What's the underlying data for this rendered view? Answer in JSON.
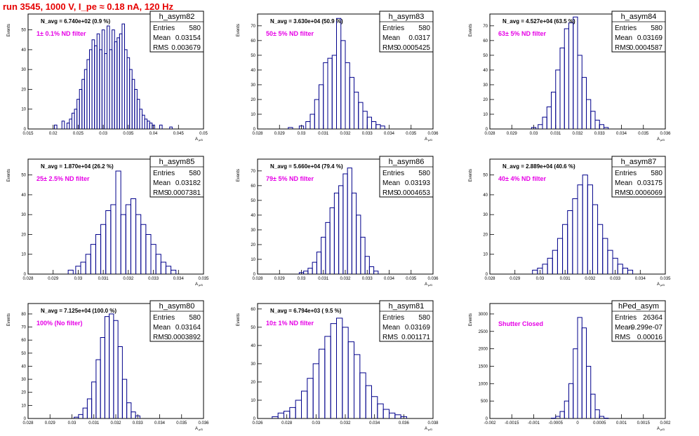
{
  "title": "run 3545,  1000 V, I_pe ≈ 0.18 nA, 120 Hz",
  "colors": {
    "title": "#e60000",
    "hist": "#00008b",
    "filter_label": "#e600e6",
    "frame": "#000000"
  },
  "chart_data": [
    {
      "type": "histogram",
      "name": "h_asym82",
      "stats": {
        "Entries": "580",
        "Mean": "0.03154",
        "RMS": "0.003679"
      },
      "n_avg": "N_avg = 6.740e+02 (0.9 %)",
      "filter": "1± 0.1% ND filter",
      "xlabel": "",
      "ylabel": "Events",
      "xlim": [
        0.015,
        0.05
      ],
      "ylim": [
        0,
        58
      ],
      "xticks": [
        "0.015",
        "0.02",
        "0.025",
        "0.03",
        "0.035",
        "0.04",
        "0.045",
        "0.05"
      ],
      "yticks": [
        "0",
        "10",
        "20",
        "30",
        "40",
        "50"
      ],
      "bins": [
        [
          0.0205,
          2
        ],
        [
          0.022,
          4
        ],
        [
          0.023,
          3
        ],
        [
          0.0235,
          5
        ],
        [
          0.024,
          8
        ],
        [
          0.0245,
          10
        ],
        [
          0.025,
          15
        ],
        [
          0.0255,
          20
        ],
        [
          0.026,
          25
        ],
        [
          0.0265,
          30
        ],
        [
          0.027,
          35
        ],
        [
          0.0275,
          40
        ],
        [
          0.028,
          45
        ],
        [
          0.0285,
          42
        ],
        [
          0.029,
          48
        ],
        [
          0.0295,
          40
        ],
        [
          0.03,
          50
        ],
        [
          0.0305,
          38
        ],
        [
          0.031,
          52
        ],
        [
          0.0315,
          40
        ],
        [
          0.032,
          50
        ],
        [
          0.0325,
          44
        ],
        [
          0.033,
          46
        ],
        [
          0.0335,
          48
        ],
        [
          0.034,
          53
        ],
        [
          0.0345,
          40
        ],
        [
          0.035,
          36
        ],
        [
          0.0355,
          30
        ],
        [
          0.036,
          25
        ],
        [
          0.0365,
          20
        ],
        [
          0.037,
          15
        ],
        [
          0.0375,
          10
        ],
        [
          0.038,
          7
        ],
        [
          0.0385,
          5
        ],
        [
          0.039,
          4
        ],
        [
          0.0395,
          3
        ],
        [
          0.04,
          2
        ],
        [
          0.0415,
          2
        ],
        [
          0.0435,
          1
        ]
      ]
    },
    {
      "type": "histogram",
      "name": "h_asym83",
      "stats": {
        "Entries": "580",
        "Mean": "0.0317",
        "RMS": "0.0005425"
      },
      "n_avg": "N_avg = 3.630e+04 (50.9 %)",
      "filter": "50± 5% ND filter",
      "xlabel": "",
      "ylabel": "Events",
      "xlim": [
        0.028,
        0.036
      ],
      "ylim": [
        0,
        78
      ],
      "xticks": [
        "0.028",
        "0.029",
        "0.03",
        "0.031",
        "0.032",
        "0.033",
        "0.034",
        "0.035",
        "0.036"
      ],
      "yticks": [
        "0",
        "10",
        "20",
        "30",
        "40",
        "50",
        "60",
        "70"
      ],
      "bins": [
        [
          0.0295,
          1
        ],
        [
          0.03,
          2
        ],
        [
          0.0303,
          5
        ],
        [
          0.0305,
          10
        ],
        [
          0.0307,
          20
        ],
        [
          0.0309,
          30
        ],
        [
          0.0311,
          45
        ],
        [
          0.0313,
          48
        ],
        [
          0.0315,
          50
        ],
        [
          0.0317,
          75
        ],
        [
          0.0319,
          60
        ],
        [
          0.0321,
          45
        ],
        [
          0.0323,
          35
        ],
        [
          0.0325,
          25
        ],
        [
          0.0327,
          18
        ],
        [
          0.0329,
          12
        ],
        [
          0.0331,
          8
        ],
        [
          0.0333,
          5
        ],
        [
          0.0335,
          3
        ],
        [
          0.0337,
          2
        ]
      ]
    },
    {
      "type": "histogram",
      "name": "h_asym84",
      "stats": {
        "Entries": "580",
        "Mean": "0.03169",
        "RMS": "0.0004587"
      },
      "n_avg": "N_avg = 4.527e+04 (63.5 %)",
      "filter": "63± 5% ND filter",
      "xlabel": "",
      "ylabel": "Events",
      "xlim": [
        0.028,
        0.036
      ],
      "ylim": [
        0,
        78
      ],
      "xticks": [
        "0.028",
        "0.029",
        "0.03",
        "0.031",
        "0.032",
        "0.033",
        "0.034",
        "0.035",
        "0.036"
      ],
      "yticks": [
        "0",
        "10",
        "20",
        "30",
        "40",
        "50",
        "60",
        "70"
      ],
      "bins": [
        [
          0.03,
          1
        ],
        [
          0.0303,
          3
        ],
        [
          0.0305,
          8
        ],
        [
          0.0307,
          15
        ],
        [
          0.0309,
          25
        ],
        [
          0.0311,
          40
        ],
        [
          0.0313,
          55
        ],
        [
          0.0315,
          68
        ],
        [
          0.0317,
          72
        ],
        [
          0.0319,
          76
        ],
        [
          0.0321,
          50
        ],
        [
          0.0323,
          35
        ],
        [
          0.0325,
          20
        ],
        [
          0.0327,
          12
        ],
        [
          0.0329,
          6
        ],
        [
          0.0331,
          3
        ],
        [
          0.0333,
          1
        ]
      ]
    },
    {
      "type": "histogram",
      "name": "h_asym85",
      "stats": {
        "Entries": "580",
        "Mean": "0.03182",
        "RMS": "0.0007381"
      },
      "n_avg": "N_avg = 1.870e+04 (26.2 %)",
      "filter": "25± 2.5% ND filter",
      "xlabel": "",
      "ylabel": "Events",
      "xlim": [
        0.028,
        0.035
      ],
      "ylim": [
        0,
        58
      ],
      "xticks": [
        "0.028",
        "0.029",
        "0.03",
        "0.031",
        "0.032",
        "0.033",
        "0.034",
        "0.035"
      ],
      "yticks": [
        "0",
        "10",
        "20",
        "30",
        "40",
        "50"
      ],
      "bins": [
        [
          0.0297,
          2
        ],
        [
          0.03,
          4
        ],
        [
          0.0302,
          6
        ],
        [
          0.0304,
          10
        ],
        [
          0.0306,
          15
        ],
        [
          0.0308,
          20
        ],
        [
          0.031,
          25
        ],
        [
          0.0312,
          32
        ],
        [
          0.0314,
          35
        ],
        [
          0.0316,
          52
        ],
        [
          0.0318,
          30
        ],
        [
          0.032,
          35
        ],
        [
          0.0322,
          38
        ],
        [
          0.0324,
          30
        ],
        [
          0.0326,
          25
        ],
        [
          0.0328,
          20
        ],
        [
          0.033,
          15
        ],
        [
          0.0332,
          10
        ],
        [
          0.0334,
          6
        ],
        [
          0.0336,
          4
        ],
        [
          0.0338,
          2
        ]
      ]
    },
    {
      "type": "histogram",
      "name": "h_asym86",
      "stats": {
        "Entries": "580",
        "Mean": "0.03193",
        "RMS": "0.0004653"
      },
      "n_avg": "N_avg = 5.660e+04 (79.4 %)",
      "filter": "79± 5% ND filter",
      "xlabel": "",
      "ylabel": "Events",
      "xlim": [
        0.028,
        0.036
      ],
      "ylim": [
        0,
        78
      ],
      "xticks": [
        "0.028",
        "0.029",
        "0.03",
        "0.031",
        "0.032",
        "0.033",
        "0.034",
        "0.035",
        "0.036"
      ],
      "yticks": [
        "0",
        "10",
        "20",
        "30",
        "40",
        "50",
        "60",
        "70"
      ],
      "bins": [
        [
          0.03,
          1
        ],
        [
          0.0302,
          2
        ],
        [
          0.0304,
          4
        ],
        [
          0.0306,
          8
        ],
        [
          0.0308,
          15
        ],
        [
          0.031,
          25
        ],
        [
          0.0312,
          35
        ],
        [
          0.0314,
          45
        ],
        [
          0.0316,
          55
        ],
        [
          0.0318,
          60
        ],
        [
          0.032,
          68
        ],
        [
          0.0322,
          72
        ],
        [
          0.0324,
          55
        ],
        [
          0.0326,
          40
        ],
        [
          0.0328,
          25
        ],
        [
          0.033,
          12
        ],
        [
          0.0332,
          5
        ],
        [
          0.0334,
          2
        ]
      ]
    },
    {
      "type": "histogram",
      "name": "h_asym87",
      "stats": {
        "Entries": "580",
        "Mean": "0.03175",
        "RMS": "0.0006069"
      },
      "n_avg": "N_avg = 2.889e+04 (40.6 %)",
      "filter": "40± 4% ND filter",
      "xlabel": "",
      "ylabel": "Events",
      "xlim": [
        0.028,
        0.035
      ],
      "ylim": [
        0,
        58
      ],
      "xticks": [
        "0.028",
        "0.029",
        "0.03",
        "0.031",
        "0.032",
        "0.033",
        "0.034",
        "0.035"
      ],
      "yticks": [
        "0",
        "10",
        "20",
        "30",
        "40",
        "50"
      ],
      "bins": [
        [
          0.0298,
          2
        ],
        [
          0.03,
          3
        ],
        [
          0.0302,
          5
        ],
        [
          0.0304,
          8
        ],
        [
          0.0306,
          12
        ],
        [
          0.0308,
          18
        ],
        [
          0.031,
          25
        ],
        [
          0.0312,
          32
        ],
        [
          0.0314,
          38
        ],
        [
          0.0316,
          45
        ],
        [
          0.0318,
          50
        ],
        [
          0.032,
          45
        ],
        [
          0.0322,
          35
        ],
        [
          0.0324,
          25
        ],
        [
          0.0326,
          18
        ],
        [
          0.0328,
          12
        ],
        [
          0.033,
          8
        ],
        [
          0.0332,
          5
        ],
        [
          0.0334,
          3
        ],
        [
          0.0336,
          2
        ]
      ]
    },
    {
      "type": "histogram",
      "name": "h_asym80",
      "stats": {
        "Entries": "580",
        "Mean": "0.03164",
        "RMS": "0.0003892"
      },
      "n_avg": "N_avg = 7.125e+04 (100.0 %)",
      "filter": "100% (No filter)",
      "xlabel": "",
      "ylabel": "Events",
      "xlim": [
        0.028,
        0.036
      ],
      "ylim": [
        0,
        88
      ],
      "xticks": [
        "0.028",
        "0.029",
        "0.03",
        "0.031",
        "0.032",
        "0.033",
        "0.034",
        "0.035",
        "0.036"
      ],
      "yticks": [
        "0",
        "10",
        "20",
        "30",
        "40",
        "50",
        "60",
        "70",
        "80"
      ],
      "bins": [
        [
          0.0302,
          1
        ],
        [
          0.0304,
          3
        ],
        [
          0.0306,
          8
        ],
        [
          0.0308,
          15
        ],
        [
          0.031,
          28
        ],
        [
          0.0312,
          45
        ],
        [
          0.0314,
          62
        ],
        [
          0.0316,
          78
        ],
        [
          0.0318,
          80
        ],
        [
          0.032,
          75
        ],
        [
          0.0322,
          55
        ],
        [
          0.0324,
          30
        ],
        [
          0.0326,
          12
        ],
        [
          0.0328,
          5
        ],
        [
          0.033,
          2
        ]
      ]
    },
    {
      "type": "histogram",
      "name": "h_asym81",
      "stats": {
        "Entries": "580",
        "Mean": "0.03169",
        "RMS": "0.001171"
      },
      "n_avg": "N_avg = 6.794e+03 ( 9.5 %)",
      "filter": "10± 1% ND filter",
      "xlabel": "",
      "ylabel": "Events",
      "xlim": [
        0.026,
        0.038
      ],
      "ylim": [
        0,
        63
      ],
      "xticks": [
        "0.026",
        "0.028",
        "0.03",
        "0.032",
        "0.034",
        "0.036",
        "0.038"
      ],
      "yticks": [
        "0",
        "10",
        "20",
        "30",
        "40",
        "50",
        "60"
      ],
      "bins": [
        [
          0.0272,
          1
        ],
        [
          0.0276,
          3
        ],
        [
          0.028,
          4
        ],
        [
          0.0284,
          6
        ],
        [
          0.0288,
          10
        ],
        [
          0.0292,
          15
        ],
        [
          0.0296,
          22
        ],
        [
          0.03,
          30
        ],
        [
          0.0304,
          38
        ],
        [
          0.0308,
          45
        ],
        [
          0.0312,
          52
        ],
        [
          0.0316,
          55
        ],
        [
          0.032,
          50
        ],
        [
          0.0324,
          42
        ],
        [
          0.0328,
          35
        ],
        [
          0.0332,
          25
        ],
        [
          0.0336,
          18
        ],
        [
          0.034,
          12
        ],
        [
          0.0344,
          8
        ],
        [
          0.0348,
          5
        ],
        [
          0.0352,
          3
        ],
        [
          0.0356,
          2
        ],
        [
          0.036,
          1
        ]
      ]
    },
    {
      "type": "histogram",
      "name": "hPed_asym",
      "stats": {
        "Entries": "26364",
        "Mean": "-9.299e-07",
        "RMS": "0.00016"
      },
      "n_avg": "",
      "filter": "Shutter Closed",
      "xlabel": "",
      "ylabel": "Events",
      "xlim": [
        -0.002,
        0.002
      ],
      "ylim": [
        0,
        3300
      ],
      "xticks": [
        "-0.002",
        "-0.0015",
        "-0.001",
        "-0.0005",
        "0",
        "0.0005",
        "0.001",
        "0.0015",
        "0.002"
      ],
      "yticks": [
        "0",
        "500",
        "1000",
        "1500",
        "2000",
        "2500",
        "3000"
      ],
      "bins": [
        [
          -0.00055,
          10
        ],
        [
          -0.00045,
          60
        ],
        [
          -0.00035,
          200
        ],
        [
          -0.00025,
          500
        ],
        [
          -0.00015,
          1000
        ],
        [
          -5e-05,
          2000
        ],
        [
          5e-05,
          2900
        ],
        [
          0.00015,
          2600
        ],
        [
          0.00025,
          1500
        ],
        [
          0.00035,
          700
        ],
        [
          0.00045,
          250
        ],
        [
          0.00055,
          60
        ],
        [
          0.00065,
          10
        ]
      ]
    }
  ]
}
